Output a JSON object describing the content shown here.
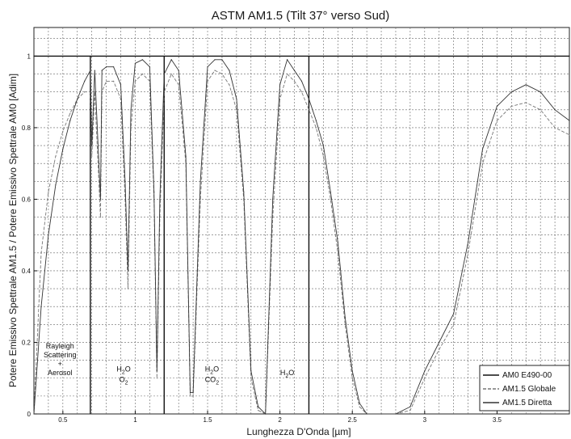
{
  "chart_data": {
    "type": "line",
    "title": "ASTM AM1.5 (Tilt 37° verso Sud)",
    "xlabel": "Lunghezza D'Onda [µm]",
    "ylabel": "Potere Emissivo Spettrale AM1.5 / Potere Emissivo Spettrale AM0 [Adim]",
    "xlim": [
      0.3,
      4.0
    ],
    "ylim": [
      0,
      1.08
    ],
    "x_ticks": [
      0.5,
      1,
      1.5,
      2,
      2.5,
      3,
      3.5
    ],
    "x_tick_labels": [
      "0.5",
      "1",
      "1.5",
      "2",
      "2.5",
      "3",
      "3.5"
    ],
    "y_ticks": [
      0,
      0.2,
      0.4,
      0.6,
      0.8,
      1
    ],
    "y_tick_labels": [
      "0",
      "0.2",
      "0.4",
      "0.6",
      "0.8",
      "1"
    ],
    "grid": true,
    "legend_position": "bottom-right",
    "series": [
      {
        "name": "AM0 E490-00",
        "color": "#111111",
        "x": [
          0.3,
          4.0
        ],
        "y": [
          1.0,
          1.0
        ]
      },
      {
        "name": "AM1.5 Globale",
        "color": "#777777",
        "x": [
          0.3,
          0.35,
          0.4,
          0.45,
          0.5,
          0.55,
          0.6,
          0.65,
          0.69,
          0.7,
          0.72,
          0.76,
          0.77,
          0.8,
          0.85,
          0.9,
          0.93,
          0.95,
          0.97,
          1.0,
          1.05,
          1.1,
          1.13,
          1.15,
          1.17,
          1.2,
          1.25,
          1.3,
          1.35,
          1.38,
          1.4,
          1.45,
          1.5,
          1.55,
          1.6,
          1.65,
          1.7,
          1.75,
          1.8,
          1.85,
          1.9,
          1.95,
          2.0,
          2.05,
          2.1,
          2.15,
          2.2,
          2.25,
          2.3,
          2.35,
          2.4,
          2.45,
          2.5,
          2.55,
          2.6,
          2.7,
          2.8,
          2.9,
          3.0,
          3.1,
          3.2,
          3.3,
          3.4,
          3.5,
          3.6,
          3.7,
          3.8,
          3.9,
          4.0
        ],
        "y": [
          0.0,
          0.45,
          0.62,
          0.72,
          0.79,
          0.84,
          0.88,
          0.9,
          0.9,
          0.72,
          0.9,
          0.55,
          0.9,
          0.93,
          0.93,
          0.88,
          0.6,
          0.35,
          0.8,
          0.93,
          0.95,
          0.93,
          0.6,
          0.1,
          0.55,
          0.9,
          0.95,
          0.92,
          0.7,
          0.05,
          0.05,
          0.6,
          0.93,
          0.96,
          0.95,
          0.92,
          0.85,
          0.6,
          0.1,
          0.01,
          0.0,
          0.55,
          0.88,
          0.95,
          0.93,
          0.9,
          0.85,
          0.8,
          0.72,
          0.6,
          0.45,
          0.25,
          0.1,
          0.02,
          0.0,
          0.0,
          0.0,
          0.01,
          0.1,
          0.18,
          0.25,
          0.45,
          0.7,
          0.82,
          0.86,
          0.87,
          0.85,
          0.8,
          0.78
        ]
      },
      {
        "name": "AM1.5 Diretta",
        "color": "#333333",
        "x": [
          0.3,
          0.35,
          0.4,
          0.45,
          0.5,
          0.55,
          0.6,
          0.65,
          0.69,
          0.7,
          0.72,
          0.76,
          0.77,
          0.8,
          0.85,
          0.9,
          0.93,
          0.95,
          0.97,
          1.0,
          1.05,
          1.1,
          1.13,
          1.15,
          1.17,
          1.2,
          1.25,
          1.3,
          1.35,
          1.38,
          1.4,
          1.45,
          1.5,
          1.55,
          1.6,
          1.65,
          1.7,
          1.75,
          1.8,
          1.85,
          1.9,
          1.95,
          2.0,
          2.05,
          2.1,
          2.15,
          2.2,
          2.25,
          2.3,
          2.35,
          2.4,
          2.45,
          2.5,
          2.55,
          2.6,
          2.7,
          2.8,
          2.9,
          3.0,
          3.1,
          3.2,
          3.3,
          3.4,
          3.5,
          3.6,
          3.7,
          3.8,
          3.9,
          4.0
        ],
        "y": [
          0.0,
          0.3,
          0.5,
          0.64,
          0.74,
          0.82,
          0.88,
          0.93,
          0.96,
          0.75,
          0.96,
          0.6,
          0.96,
          0.97,
          0.97,
          0.92,
          0.65,
          0.4,
          0.85,
          0.98,
          0.99,
          0.97,
          0.62,
          0.12,
          0.6,
          0.95,
          0.99,
          0.96,
          0.72,
          0.06,
          0.06,
          0.65,
          0.97,
          0.99,
          0.99,
          0.96,
          0.88,
          0.62,
          0.12,
          0.02,
          0.0,
          0.6,
          0.92,
          0.99,
          0.96,
          0.93,
          0.88,
          0.82,
          0.75,
          0.62,
          0.48,
          0.27,
          0.12,
          0.03,
          0.0,
          0.0,
          0.0,
          0.02,
          0.12,
          0.2,
          0.28,
          0.48,
          0.74,
          0.86,
          0.9,
          0.92,
          0.9,
          0.85,
          0.82
        ]
      }
    ],
    "annotations": [
      {
        "lines": [
          "Rayleigh",
          "Scattering",
          "+",
          "Aerosol"
        ],
        "x": 0.48,
        "y": 0.16
      },
      {
        "main": "H",
        "sub": "2",
        "tail": "O",
        "main2": "O",
        "sub2": "2",
        "x": 0.92,
        "y": 0.1
      },
      {
        "main": "H",
        "sub": "2",
        "tail": "O",
        "main2": "CO",
        "sub2": "2",
        "x": 1.53,
        "y": 0.1
      },
      {
        "main": "H",
        "sub": "2",
        "tail": "O",
        "x": 2.05,
        "y": 0.09
      }
    ],
    "bands": [
      0.69,
      1.2,
      2.2
    ]
  }
}
